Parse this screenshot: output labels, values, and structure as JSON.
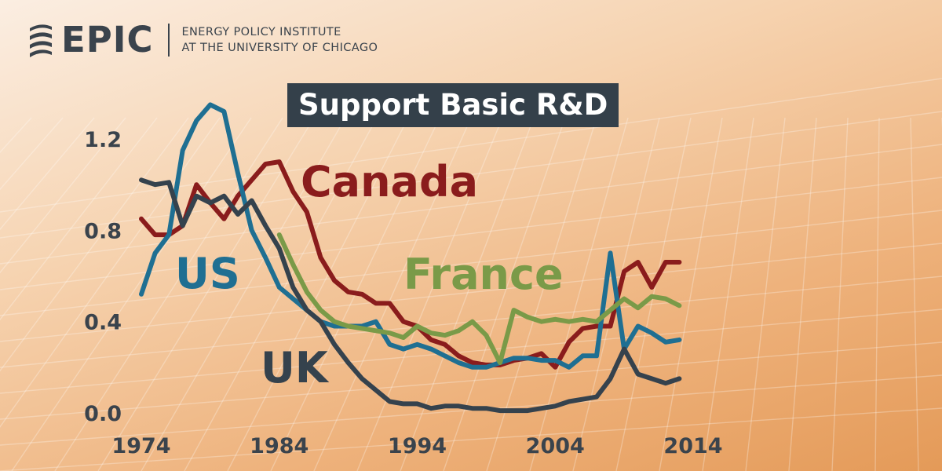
{
  "logo": {
    "icon": "epic-spiral-icon",
    "wordmark": "EPIC",
    "subtitle_line1": "ENERGY POLICY INSTITUTE",
    "subtitle_line2": "AT THE UNIVERSITY OF CHICAGO"
  },
  "colors": {
    "US": "#1f6f92",
    "Canada": "#8a1c1c",
    "France": "#7a9a48",
    "UK": "#35424d",
    "text": "#3a434c"
  },
  "chart_data": {
    "type": "line",
    "title": "Support Basic R&D",
    "xlabel": "",
    "ylabel": "",
    "xlim": [
      1974,
      2014
    ],
    "ylim": [
      0.0,
      1.3
    ],
    "x_ticks": [
      1974,
      1984,
      1994,
      2004,
      2014
    ],
    "y_ticks": [
      0.0,
      0.4,
      0.8,
      1.2
    ],
    "y_tick_labels": [
      "0.0",
      "0.4",
      "0.8",
      "1.2"
    ],
    "grid": false,
    "legend": "inline labels",
    "series": [
      {
        "name": "Canada",
        "x": [
          1974,
          1975,
          1976,
          1977,
          1978,
          1979,
          1980,
          1981,
          1982,
          1983,
          1984,
          1985,
          1986,
          1987,
          1988,
          1989,
          1990,
          1991,
          1992,
          1993,
          1994,
          1995,
          1996,
          1997,
          1998,
          1999,
          2000,
          2001,
          2002,
          2003,
          2004,
          2005,
          2006,
          2007,
          2008,
          2009,
          2010,
          2011,
          2012,
          2013
        ],
        "y": [
          0.85,
          0.78,
          0.78,
          0.82,
          1.0,
          0.92,
          0.85,
          0.95,
          1.02,
          1.09,
          1.1,
          0.97,
          0.88,
          0.68,
          0.58,
          0.53,
          0.52,
          0.48,
          0.48,
          0.4,
          0.38,
          0.32,
          0.3,
          0.25,
          0.22,
          0.21,
          0.21,
          0.23,
          0.24,
          0.26,
          0.2,
          0.31,
          0.37,
          0.38,
          0.38,
          0.62,
          0.66,
          0.55,
          0.66,
          0.66
        ]
      },
      {
        "name": "US",
        "x": [
          1974,
          1975,
          1976,
          1977,
          1978,
          1979,
          1980,
          1981,
          1982,
          1983,
          1984,
          1985,
          1986,
          1987,
          1988,
          1989,
          1990,
          1991,
          1992,
          1993,
          1994,
          1995,
          1996,
          1997,
          1998,
          1999,
          2000,
          2001,
          2002,
          2003,
          2004,
          2005,
          2006,
          2007,
          2008,
          2009,
          2010,
          2011,
          2012,
          2013
        ],
        "y": [
          0.52,
          0.7,
          0.78,
          1.15,
          1.28,
          1.35,
          1.32,
          1.05,
          0.8,
          0.68,
          0.55,
          0.5,
          0.45,
          0.4,
          0.38,
          0.38,
          0.38,
          0.4,
          0.3,
          0.28,
          0.3,
          0.28,
          0.25,
          0.22,
          0.2,
          0.2,
          0.22,
          0.24,
          0.24,
          0.23,
          0.23,
          0.2,
          0.25,
          0.25,
          0.7,
          0.28,
          0.38,
          0.35,
          0.31,
          0.32
        ]
      },
      {
        "name": "UK",
        "x": [
          1974,
          1975,
          1976,
          1977,
          1978,
          1979,
          1980,
          1981,
          1982,
          1983,
          1984,
          1985,
          1986,
          1987,
          1988,
          1989,
          1990,
          1991,
          1992,
          1993,
          1994,
          1995,
          1996,
          1997,
          1998,
          1999,
          2000,
          2001,
          2002,
          2003,
          2004,
          2005,
          2006,
          2007,
          2008,
          2009,
          2010,
          2011,
          2012,
          2013
        ],
        "y": [
          1.02,
          1.0,
          1.01,
          0.82,
          0.95,
          0.92,
          0.95,
          0.87,
          0.93,
          0.82,
          0.72,
          0.55,
          0.45,
          0.4,
          0.3,
          0.22,
          0.15,
          0.1,
          0.05,
          0.04,
          0.04,
          0.02,
          0.03,
          0.03,
          0.02,
          0.02,
          0.01,
          0.01,
          0.01,
          0.02,
          0.03,
          0.05,
          0.06,
          0.07,
          0.15,
          0.28,
          0.17,
          0.15,
          0.13,
          0.15
        ]
      },
      {
        "name": "France",
        "x": [
          1984,
          1985,
          1986,
          1987,
          1988,
          1989,
          1990,
          1991,
          1992,
          1993,
          1994,
          1995,
          1996,
          1997,
          1998,
          1999,
          2000,
          2001,
          2002,
          2003,
          2004,
          2005,
          2006,
          2007,
          2008,
          2009,
          2010,
          2011,
          2012,
          2013
        ],
        "y": [
          0.78,
          0.65,
          0.53,
          0.45,
          0.4,
          0.38,
          0.37,
          0.36,
          0.35,
          0.33,
          0.38,
          0.35,
          0.34,
          0.36,
          0.4,
          0.34,
          0.22,
          0.45,
          0.42,
          0.4,
          0.41,
          0.4,
          0.41,
          0.4,
          0.45,
          0.5,
          0.46,
          0.51,
          0.5,
          0.47
        ]
      }
    ],
    "annotations": [
      {
        "series": "Canada",
        "text": "Canada"
      },
      {
        "series": "US",
        "text": "US"
      },
      {
        "series": "France",
        "text": "France"
      },
      {
        "series": "UK",
        "text": "UK"
      }
    ]
  }
}
